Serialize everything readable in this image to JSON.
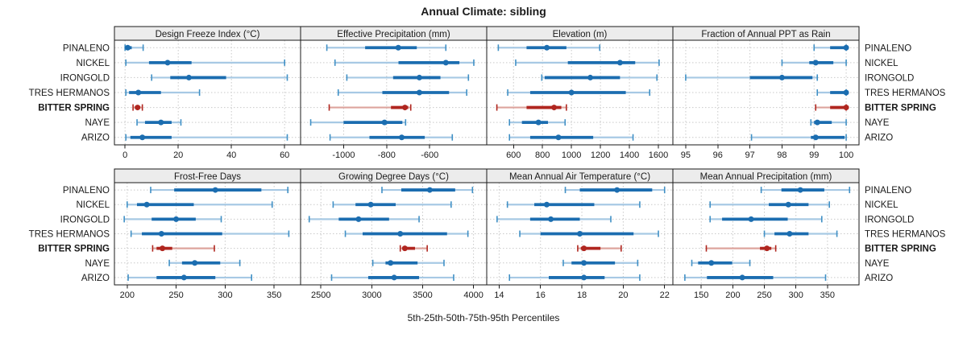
{
  "chart_data": {
    "type": "dotplot",
    "title": "Annual Climate: sibling",
    "caption": "5th-25th-50th-75th-95th Percentiles",
    "percentiles": [
      "5th",
      "25th",
      "50th",
      "75th",
      "95th"
    ],
    "sites": [
      "PINALENO",
      "NICKEL",
      "IRONGOLD",
      "TRES HERMANOS",
      "BITTER SPRING",
      "NAYE",
      "ARIZO"
    ],
    "highlight_site": "BITTER SPRING",
    "legend_position": "none",
    "grid": true,
    "colors": {
      "normal": {
        "dark": "#1b6db0",
        "light": "#a7c9e4",
        "cap": "#4090c5"
      },
      "highlight": {
        "dark": "#b0261f",
        "light": "#dda49d",
        "cap": "#b0261f"
      },
      "grid": "#c9c9c9",
      "border": "#1a1a1a",
      "strip_bg": "#ececec",
      "text": "#1a1a1a"
    },
    "rows": [
      [
        {
          "title": "Design Freeze Index (°C)",
          "xlim": [
            -4,
            66
          ],
          "ticks": [
            0,
            20,
            40,
            60
          ],
          "values": [
            [
              0,
              0.3,
              1,
              2.5,
              6.8
            ],
            [
              0.3,
              9,
              16,
              25,
              60
            ],
            [
              10,
              17,
              24,
              38,
              61
            ],
            [
              0.3,
              1.5,
              5,
              13.5,
              28
            ],
            [
              3,
              3.8,
              4.7,
              5.6,
              6.5
            ],
            [
              4.5,
              7.5,
              13.5,
              17.5,
              21
            ],
            [
              0.3,
              2,
              6.5,
              17.5,
              61
            ]
          ]
        },
        {
          "title": "Effective Precipitation (mm)",
          "xlim": [
            -1200,
            -335
          ],
          "ticks": [
            -1000,
            -800,
            -600
          ],
          "values": [
            [
              -1078,
              -900,
              -746,
              -660,
              -525
            ],
            [
              -1040,
              -745,
              -525,
              -462,
              -395
            ],
            [
              -985,
              -770,
              -648,
              -550,
              -420
            ],
            [
              -1025,
              -820,
              -648,
              -510,
              -428
            ],
            [
              -1067,
              -780,
              -715,
              -700,
              -688
            ],
            [
              -1153,
              -1000,
              -810,
              -727,
              -712
            ],
            [
              -1063,
              -880,
              -730,
              -623,
              -495
            ]
          ]
        },
        {
          "title": "Elevation (m)",
          "xlim": [
            415,
            1700
          ],
          "ticks": [
            600,
            800,
            1000,
            1200,
            1400,
            1600
          ],
          "values": [
            [
              495,
              690,
              830,
              965,
              1195
            ],
            [
              615,
              975,
              1335,
              1440,
              1605
            ],
            [
              795,
              815,
              1130,
              1335,
              1590
            ],
            [
              560,
              715,
              1000,
              1375,
              1540
            ],
            [
              485,
              690,
              880,
              930,
              965
            ],
            [
              572,
              658,
              772,
              838,
              956
            ],
            [
              572,
              715,
              910,
              1150,
              1425
            ]
          ]
        },
        {
          "title": "Fraction of Annual PPT as Rain",
          "xlim": [
            94.6,
            100.4
          ],
          "ticks": [
            95,
            96,
            97,
            98,
            99,
            100
          ],
          "values": [
            [
              99,
              99.5,
              100,
              100,
              100
            ],
            [
              98,
              98.85,
              99.05,
              99.6,
              100
            ],
            [
              95,
              97,
              98,
              98.95,
              99.1
            ],
            [
              99.1,
              99.5,
              100,
              100,
              100
            ],
            [
              99.05,
              99.5,
              100,
              100,
              100
            ],
            [
              98.9,
              99,
              99.1,
              99.55,
              100
            ],
            [
              97.05,
              98.9,
              99.05,
              99.95,
              100
            ]
          ]
        }
      ],
      [
        {
          "title": "Frost-Free Days",
          "xlim": [
            187,
            377
          ],
          "ticks": [
            200,
            250,
            300,
            350
          ],
          "values": [
            [
              224,
              248,
              290,
              337,
              364
            ],
            [
              200,
              210,
              220,
              268,
              348
            ],
            [
              197,
              225,
              250,
              270,
              296
            ],
            [
              204,
              215,
              235,
              297,
              365
            ],
            [
              226,
              230,
              236,
              246,
              289
            ],
            [
              243,
              256,
              269,
              295,
              315
            ],
            [
              201,
              230,
              258,
              290,
              327
            ]
          ]
        },
        {
          "title": "Growing Degree Days (°C)",
          "xlim": [
            2300,
            4130
          ],
          "ticks": [
            2500,
            3000,
            3500,
            4000
          ],
          "values": [
            [
              3100,
              3290,
              3570,
              3820,
              3990
            ],
            [
              2620,
              2840,
              2990,
              3235,
              3780
            ],
            [
              2385,
              2675,
              2870,
              3170,
              3465
            ],
            [
              2740,
              2910,
              3280,
              3740,
              3945
            ],
            [
              3280,
              3300,
              3325,
              3425,
              3545
            ],
            [
              3010,
              3135,
              3185,
              3450,
              3710
            ],
            [
              2605,
              2965,
              3220,
              3465,
              3805
            ]
          ]
        },
        {
          "title": "Mean Annual Air Temperature (°C)",
          "xlim": [
            13.4,
            22.4
          ],
          "ticks": [
            14,
            16,
            18,
            20,
            22
          ],
          "values": [
            [
              17.2,
              17.9,
              19.7,
              21.4,
              22.0
            ],
            [
              14.4,
              15.7,
              16.3,
              18.6,
              20.8
            ],
            [
              13.9,
              15.5,
              16.5,
              17.9,
              19.4
            ],
            [
              15.0,
              16.0,
              17.9,
              20.5,
              21.7
            ],
            [
              17.8,
              17.95,
              18.1,
              18.9,
              19.9
            ],
            [
              17.1,
              17.5,
              18.1,
              19.6,
              20.7
            ],
            [
              14.5,
              16.4,
              18.1,
              19.1,
              20.8
            ]
          ]
        },
        {
          "title": "Mean Annual Precipitation (mm)",
          "xlim": [
            105,
            400
          ],
          "ticks": [
            150,
            200,
            250,
            300,
            350
          ],
          "values": [
            [
              245,
              277,
              307,
              345,
              385
            ],
            [
              164,
              257,
              288,
              320,
              353
            ],
            [
              164,
              183,
              229,
              287,
              341
            ],
            [
              250,
              266,
              290,
              320,
              365
            ],
            [
              158,
              243,
              254,
              261,
              268
            ],
            [
              135,
              145,
              166,
              199,
              227
            ],
            [
              124,
              159,
              215,
              264,
              347
            ]
          ]
        }
      ]
    ]
  }
}
